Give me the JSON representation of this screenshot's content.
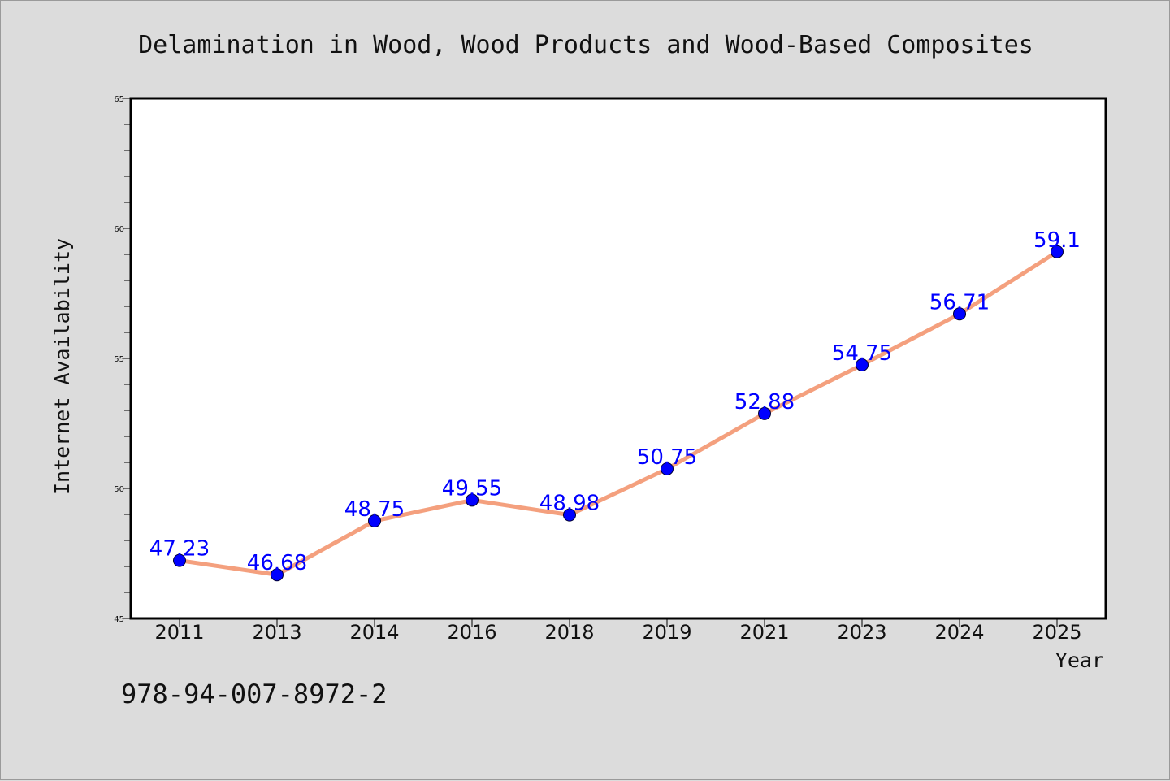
{
  "chart_data": {
    "type": "line",
    "title": "Delamination in Wood, Wood Products and Wood-Based Composites",
    "xlabel": "Year",
    "ylabel": "Internet Availability",
    "categories": [
      "2011",
      "2013",
      "2014",
      "2016",
      "2018",
      "2019",
      "2021",
      "2023",
      "2024",
      "2025"
    ],
    "series": [
      {
        "values": [
          47.23,
          46.68,
          48.75,
          49.55,
          48.98,
          50.75,
          52.88,
          54.75,
          56.71,
          59.1
        ],
        "data_labels": [
          "47.23",
          "46.68",
          "48.75",
          "49.55",
          "48.98",
          "50.75",
          "52.88",
          "54.75",
          "56.71",
          "59.1"
        ]
      }
    ],
    "ylim": [
      45,
      65
    ],
    "yticks": [
      "45",
      "50",
      "55",
      "60",
      "65"
    ],
    "grid": false,
    "legend": false,
    "colors": {
      "line": "#f4a07e",
      "marker": "#0000ff",
      "label": "#0000ff",
      "background": "#dcdcdc",
      "plot_area": "#ffffff"
    }
  },
  "footer": {
    "text": "978-94-007-8972-2"
  }
}
